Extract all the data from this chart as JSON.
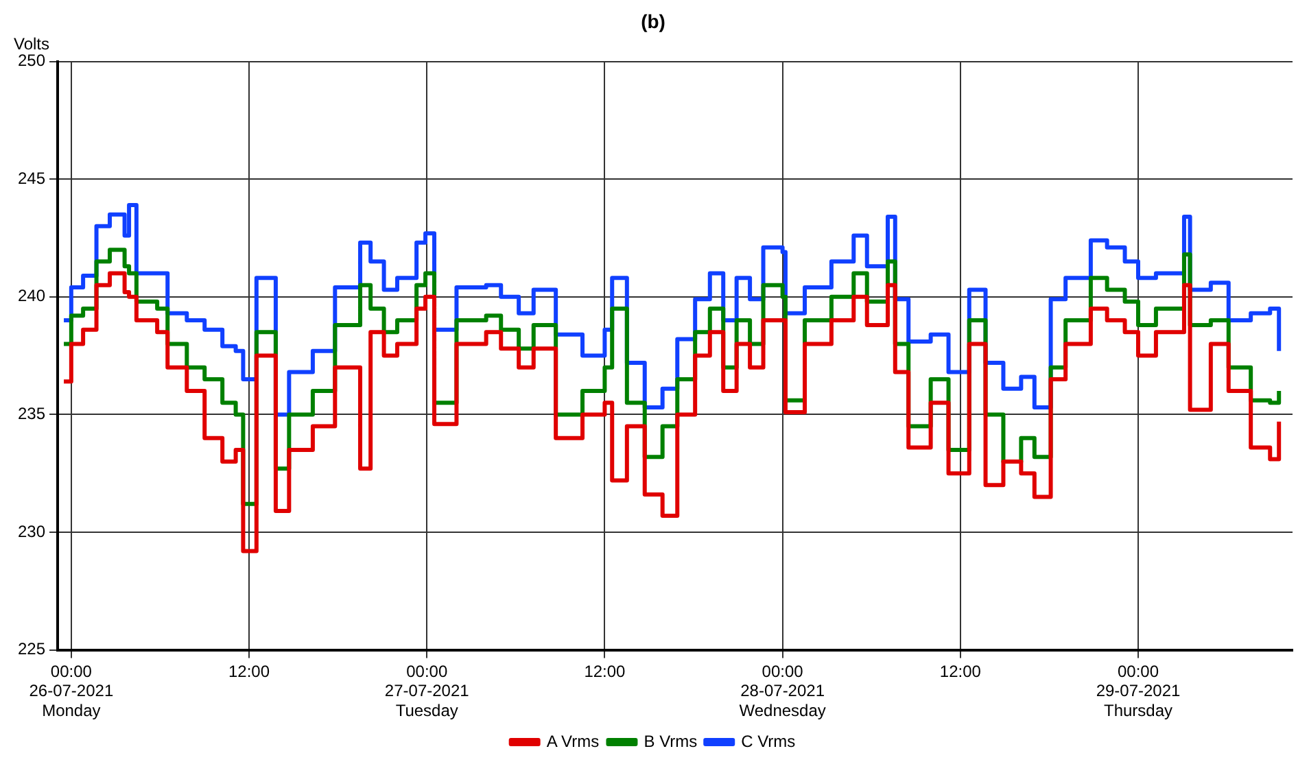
{
  "chart_data": {
    "type": "step",
    "title": "(b)",
    "ylabel": "Volts",
    "x": [
      "2021-07-25T23:30",
      "2021-07-26T00:00",
      "2021-07-26T00:48",
      "2021-07-26T01:42",
      "2021-07-26T02:36",
      "2021-07-26T03:36",
      "2021-07-26T03:54",
      "2021-07-26T04:24",
      "2021-07-26T05:48",
      "2021-07-26T06:30",
      "2021-07-26T07:48",
      "2021-07-26T09:00",
      "2021-07-26T10:12",
      "2021-07-26T11:06",
      "2021-07-26T11:36",
      "2021-07-26T12:30",
      "2021-07-26T13:48",
      "2021-07-26T14:42",
      "2021-07-26T16:18",
      "2021-07-26T17:48",
      "2021-07-26T19:30",
      "2021-07-26T20:12",
      "2021-07-26T21:06",
      "2021-07-26T22:00",
      "2021-07-26T23:18",
      "2021-07-26T23:54",
      "2021-07-27T00:30",
      "2021-07-27T02:00",
      "2021-07-27T04:00",
      "2021-07-27T05:00",
      "2021-07-27T06:12",
      "2021-07-27T07:12",
      "2021-07-27T08:42",
      "2021-07-27T10:30",
      "2021-07-27T12:00",
      "2021-07-27T12:30",
      "2021-07-27T13:30",
      "2021-07-27T14:42",
      "2021-07-27T15:54",
      "2021-07-27T16:54",
      "2021-07-27T18:06",
      "2021-07-27T19:06",
      "2021-07-27T20:00",
      "2021-07-27T20:54",
      "2021-07-27T21:48",
      "2021-07-27T22:42",
      "2021-07-28T00:00",
      "2021-07-28T00:12",
      "2021-07-28T01:30",
      "2021-07-28T03:18",
      "2021-07-28T04:48",
      "2021-07-28T05:42",
      "2021-07-28T07:06",
      "2021-07-28T07:36",
      "2021-07-28T08:30",
      "2021-07-28T10:00",
      "2021-07-28T11:12",
      "2021-07-28T12:36",
      "2021-07-28T13:42",
      "2021-07-28T14:54",
      "2021-07-28T16:06",
      "2021-07-28T17:00",
      "2021-07-28T18:06",
      "2021-07-28T19:06",
      "2021-07-28T20:48",
      "2021-07-28T21:54",
      "2021-07-28T23:06",
      "2021-07-29T00:00",
      "2021-07-29T01:12",
      "2021-07-29T03:06",
      "2021-07-29T03:30",
      "2021-07-29T04:54",
      "2021-07-29T06:06",
      "2021-07-29T07:36",
      "2021-07-29T08:54",
      "2021-07-29T09:30"
    ],
    "series": [
      {
        "name": "A Vrms",
        "color": "#e00000",
        "values": [
          236.4,
          238.0,
          238.6,
          240.5,
          241.0,
          240.2,
          240.0,
          239.0,
          238.5,
          237.0,
          236.0,
          234.0,
          233.0,
          233.5,
          229.2,
          237.5,
          230.9,
          233.5,
          234.5,
          237.0,
          232.7,
          238.5,
          237.5,
          238.0,
          239.5,
          240.0,
          234.6,
          238.0,
          238.5,
          237.8,
          237.0,
          237.8,
          234.0,
          235.0,
          235.5,
          232.2,
          234.5,
          231.6,
          230.7,
          235.0,
          237.5,
          238.5,
          236.0,
          238.0,
          237.0,
          239.0,
          239.0,
          235.1,
          238.0,
          239.0,
          240.0,
          238.8,
          240.5,
          236.8,
          233.6,
          235.5,
          232.5,
          238.0,
          232.0,
          233.0,
          232.5,
          231.5,
          236.5,
          238.0,
          239.5,
          239.0,
          238.5,
          237.5,
          238.5,
          240.5,
          235.2,
          238.0,
          236.0,
          233.6,
          233.1,
          234.7
        ]
      },
      {
        "name": "B Vrms",
        "color": "#008000",
        "values": [
          238.0,
          239.2,
          239.5,
          241.5,
          242.0,
          241.3,
          241.0,
          239.8,
          239.5,
          238.0,
          237.0,
          236.5,
          235.5,
          235.0,
          231.2,
          238.5,
          232.7,
          235.0,
          236.0,
          238.8,
          240.5,
          239.5,
          238.5,
          239.0,
          240.5,
          241.0,
          235.5,
          239.0,
          239.2,
          238.6,
          237.8,
          238.8,
          235.0,
          236.0,
          237.0,
          239.5,
          235.5,
          233.2,
          234.5,
          236.5,
          238.5,
          239.5,
          237.0,
          239.0,
          238.0,
          240.5,
          240.0,
          235.6,
          239.0,
          240.0,
          241.0,
          239.8,
          241.5,
          238.0,
          234.5,
          236.5,
          233.5,
          239.0,
          235.0,
          233.0,
          234.0,
          233.2,
          237.0,
          239.0,
          240.8,
          240.3,
          239.8,
          238.8,
          239.5,
          241.8,
          238.8,
          239.0,
          237.0,
          235.6,
          235.5,
          236.0
        ]
      },
      {
        "name": "C Vrms",
        "color": "#1040ff",
        "values": [
          239.0,
          240.4,
          240.9,
          243.0,
          243.5,
          242.6,
          243.9,
          241.0,
          241.0,
          239.3,
          239.0,
          238.6,
          237.9,
          237.7,
          236.5,
          240.8,
          235.0,
          236.8,
          237.7,
          240.4,
          242.3,
          241.5,
          240.3,
          240.8,
          242.3,
          242.7,
          238.6,
          240.4,
          240.5,
          240.0,
          239.3,
          240.3,
          238.4,
          237.5,
          238.6,
          240.8,
          237.2,
          235.3,
          236.1,
          238.2,
          239.9,
          241.0,
          239.0,
          240.8,
          239.9,
          242.1,
          241.9,
          239.3,
          240.4,
          241.5,
          242.6,
          241.3,
          243.4,
          239.9,
          238.1,
          238.4,
          236.8,
          240.3,
          237.2,
          236.1,
          236.6,
          235.3,
          239.9,
          240.8,
          242.4,
          242.1,
          241.5,
          240.8,
          241.0,
          243.4,
          240.3,
          240.6,
          239.0,
          239.3,
          239.5,
          237.7
        ]
      }
    ],
    "xlim": [
      "2021-07-25T23:05",
      "2021-07-29T10:25"
    ],
    "xticks": [
      {
        "value": "2021-07-26T00:00",
        "label": "00:00\n26-07-2021\nMonday"
      },
      {
        "value": "2021-07-26T12:00",
        "label": "12:00"
      },
      {
        "value": "2021-07-27T00:00",
        "label": "00:00\n27-07-2021\nTuesday"
      },
      {
        "value": "2021-07-27T12:00",
        "label": "12:00"
      },
      {
        "value": "2021-07-28T00:00",
        "label": "00:00\n28-07-2021\nWednesday"
      },
      {
        "value": "2021-07-28T12:00",
        "label": "12:00"
      },
      {
        "value": "2021-07-29T00:00",
        "label": "00:00\n29-07-2021\nThursday"
      }
    ],
    "ylim": [
      225,
      250
    ],
    "yticks": [
      225,
      230,
      235,
      240,
      245,
      250
    ],
    "grid": true,
    "legend": "bottom",
    "line_style": "solid",
    "marker": "none"
  }
}
